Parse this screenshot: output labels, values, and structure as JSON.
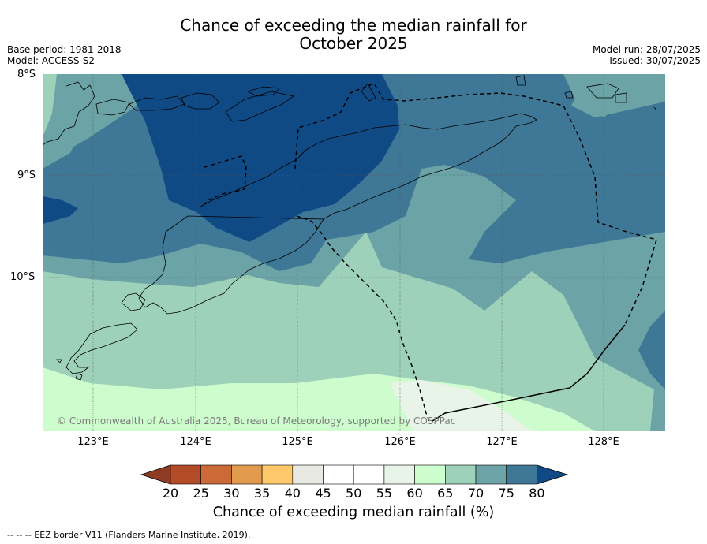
{
  "title_line1": "Chance of exceeding the median rainfall for",
  "title_line2": "October 2025",
  "base_period": "Base period: 1981-2018",
  "model": "Model: ACCESS-S2",
  "model_run": "Model run: 28/07/2025",
  "issued": "Issued: 30/07/2025",
  "lat_labels": [
    "8°S",
    "9°S",
    "10°S"
  ],
  "lon_labels": [
    "123°E",
    "124°E",
    "125°E",
    "126°E",
    "127°E",
    "128°E"
  ],
  "copyright": "© Commonwealth of Australia 2025, Bureau of Meteorology, supported by COSPPac",
  "colorbar": {
    "ticks": [
      "20",
      "25",
      "30",
      "35",
      "40",
      "45",
      "50",
      "55",
      "60",
      "65",
      "70",
      "75",
      "80"
    ],
    "label": "Chance of exceeding median rainfall (%)",
    "colors": {
      "under20": "#8f3a22",
      "c20_25": "#b44b28",
      "c25_30": "#cb6a36",
      "c30_35": "#e29a4d",
      "c35_40": "#fec96b",
      "c40_45": "#e9e9e4",
      "c45_50": "#ffffff",
      "c50_55": "#ffffff",
      "c55_60": "#e8f4e8",
      "c60_65": "#cdfccd",
      "c65_70": "#9ed1b9",
      "c70_75": "#6ca3a6",
      "c75_80": "#3f7796",
      "over80": "#104a85"
    }
  },
  "footnote": "-- -- -- EEZ border V11 (Flanders Marine Institute, 2019)."
}
